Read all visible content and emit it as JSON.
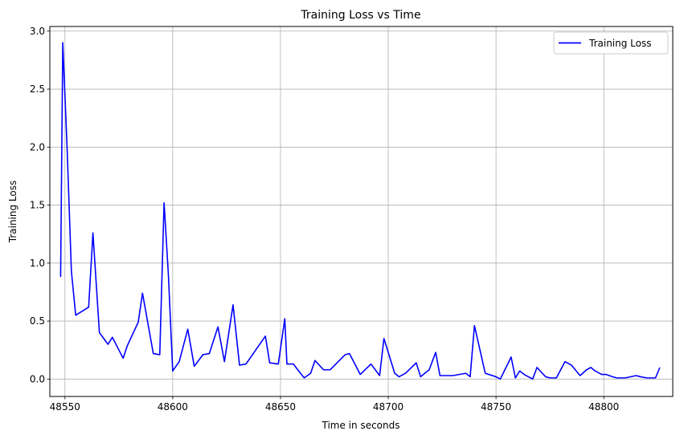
{
  "chart_data": {
    "type": "line",
    "title": "Training Loss vs Time",
    "xlabel": "Time in seconds",
    "ylabel": "Training Loss",
    "xlim": [
      48543,
      48832
    ],
    "ylim": [
      -0.15,
      3.04
    ],
    "xticks": [
      48550,
      48600,
      48650,
      48700,
      48750,
      48800
    ],
    "yticks": [
      0.0,
      0.5,
      1.0,
      1.5,
      2.0,
      2.5,
      3.0
    ],
    "xtick_labels": [
      "48550",
      "48600",
      "48650",
      "48700",
      "48750",
      "48800"
    ],
    "ytick_labels": [
      "0.0",
      "0.5",
      "1.0",
      "1.5",
      "2.0",
      "2.5",
      "3.0"
    ],
    "grid": true,
    "legend_position": "top-right",
    "series": [
      {
        "name": "Training Loss",
        "color": "#0000ff",
        "x": [
          48548,
          48549,
          48551,
          48553,
          48555,
          48561,
          48563,
          48566,
          48570,
          48572,
          48577,
          48579,
          48584,
          48586,
          48591,
          48594,
          48596,
          48598,
          48600,
          48603,
          48607,
          48610,
          48614,
          48617,
          48621,
          48624,
          48628,
          48631,
          48634,
          48643,
          48645,
          48649,
          48652,
          48653,
          48656,
          48658,
          48661,
          48664,
          48666,
          48670,
          48673,
          48680,
          48682,
          48687,
          48692,
          48696,
          48698,
          48703,
          48705,
          48708,
          48713,
          48715,
          48719,
          48722,
          48724,
          48730,
          48736,
          48738,
          48740,
          48745,
          48750,
          48752,
          48757,
          48759,
          48761,
          48763,
          48767,
          48769,
          48773,
          48775,
          48778,
          48782,
          48785,
          48789,
          48792,
          48794,
          48796,
          48799,
          48801,
          48804,
          48806,
          48810,
          48815,
          48817,
          48820,
          48824,
          48826
        ],
        "values": [
          0.88,
          2.9,
          2.0,
          0.93,
          0.55,
          0.62,
          1.26,
          0.4,
          0.3,
          0.36,
          0.18,
          0.29,
          0.49,
          0.74,
          0.22,
          0.21,
          1.52,
          0.9,
          0.07,
          0.15,
          0.43,
          0.11,
          0.21,
          0.22,
          0.45,
          0.15,
          0.64,
          0.12,
          0.13,
          0.37,
          0.14,
          0.13,
          0.52,
          0.13,
          0.13,
          0.08,
          0.01,
          0.05,
          0.16,
          0.08,
          0.08,
          0.21,
          0.22,
          0.04,
          0.13,
          0.03,
          0.35,
          0.05,
          0.02,
          0.05,
          0.14,
          0.02,
          0.08,
          0.23,
          0.03,
          0.03,
          0.05,
          0.02,
          0.46,
          0.05,
          0.02,
          0.0,
          0.19,
          0.01,
          0.07,
          0.04,
          0.0,
          0.1,
          0.02,
          0.01,
          0.01,
          0.15,
          0.12,
          0.03,
          0.08,
          0.1,
          0.07,
          0.04,
          0.04,
          0.02,
          0.01,
          0.01,
          0.03,
          0.02,
          0.01,
          0.01,
          0.1
        ]
      }
    ]
  }
}
